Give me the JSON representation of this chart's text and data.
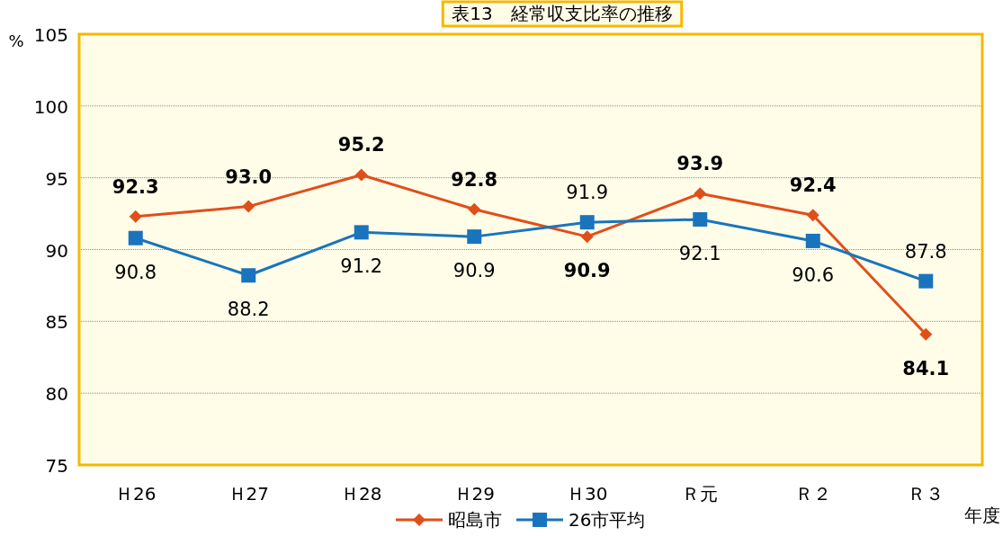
{
  "chart_data": {
    "type": "line",
    "title": "表13　経常収支比率の推移",
    "xlabel": "年度",
    "ylabel": "%",
    "categories": [
      "Ｈ26",
      "Ｈ27",
      "Ｈ28",
      "Ｈ29",
      "Ｈ30",
      "Ｒ元",
      "Ｒ２",
      "Ｒ３"
    ],
    "series": [
      {
        "name": "昭島市",
        "color": "#e04f1a",
        "marker": "diamond",
        "values": [
          92.3,
          93.0,
          95.2,
          92.8,
          90.9,
          93.9,
          92.4,
          84.1
        ],
        "value_labels": [
          "92.3",
          "93.0",
          "95.2",
          "92.8",
          "90.9",
          "93.9",
          "92.4",
          "84.1"
        ]
      },
      {
        "name": "26市平均",
        "color": "#1a74bd",
        "marker": "square",
        "values": [
          90.8,
          88.2,
          91.2,
          90.9,
          91.9,
          92.1,
          90.6,
          87.8
        ],
        "value_labels": [
          "90.8",
          "88.2",
          "91.2",
          "90.9",
          "91.9",
          "92.1",
          "90.6",
          "87.8"
        ]
      }
    ],
    "ylim": [
      75,
      105
    ],
    "yticks": [
      75,
      80,
      85,
      90,
      95,
      100,
      105
    ],
    "grid": "y",
    "legend": "bottom"
  }
}
